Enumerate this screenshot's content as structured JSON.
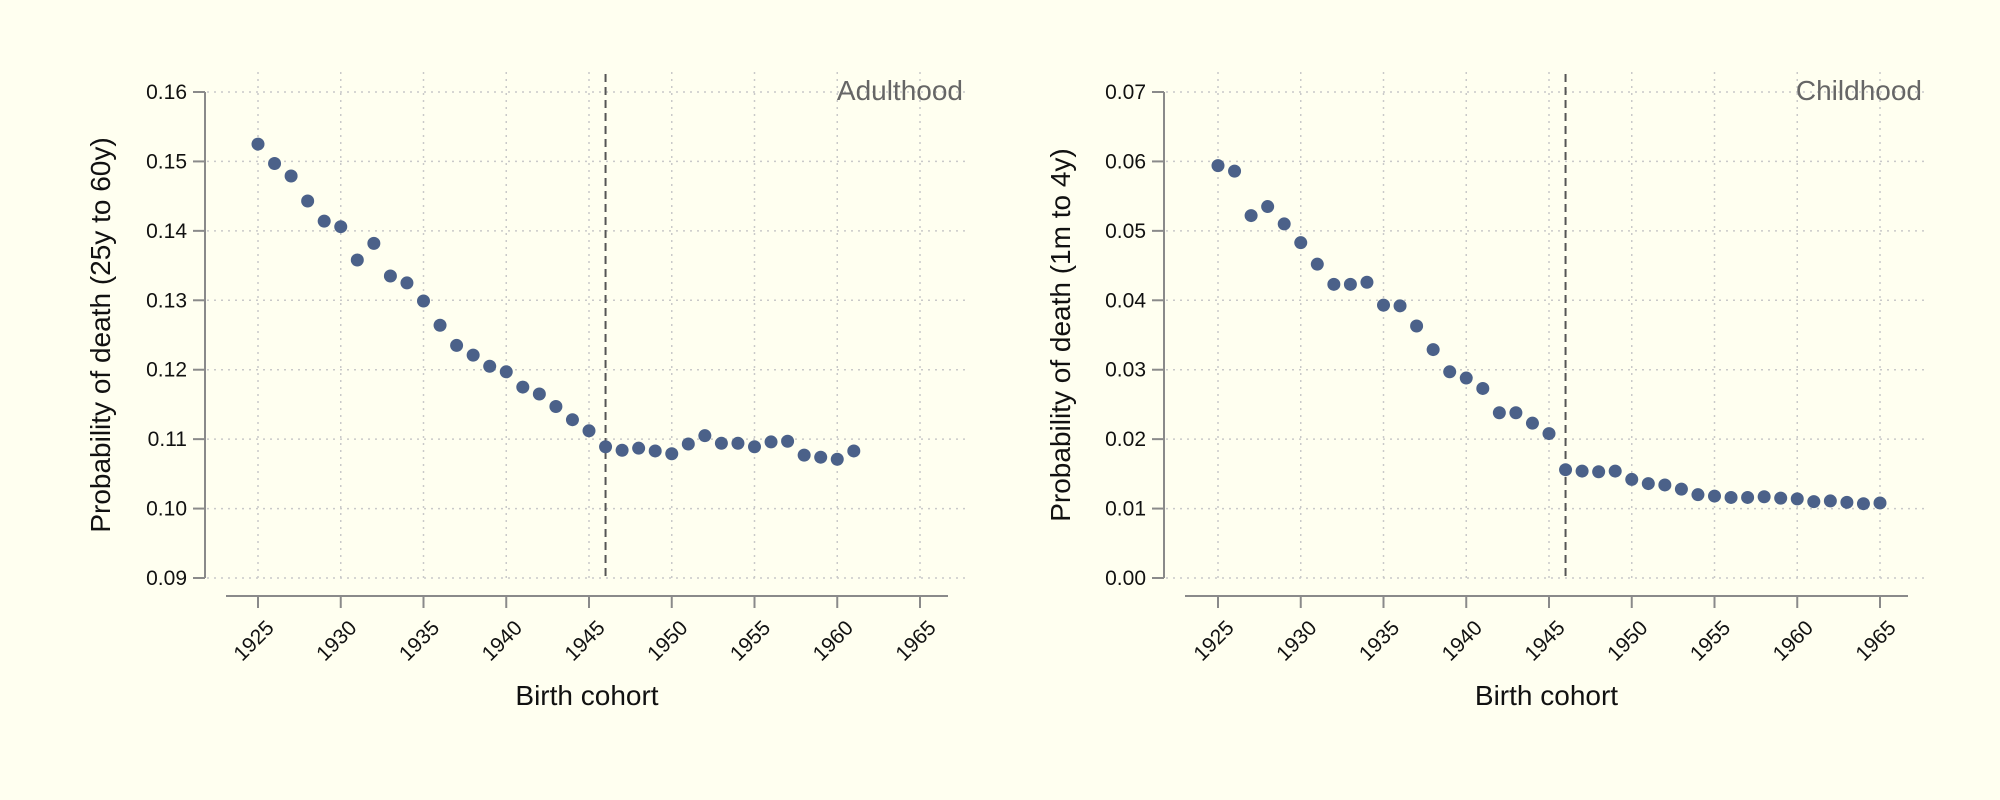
{
  "chart_data": [
    {
      "type": "scatter",
      "panel_label": "Adulthood",
      "xlabel": "Birth cohort",
      "ylabel": "Probability of death (25y to 60y)",
      "xlim": [
        1922,
        1967
      ],
      "ylim": [
        0.09,
        0.16
      ],
      "xticks": [
        "1925",
        "1930",
        "1935",
        "1940",
        "1945",
        "1950",
        "1955",
        "1960",
        "1965"
      ],
      "yticks": [
        "0.09",
        "0.10",
        "0.11",
        "0.12",
        "0.13",
        "0.14",
        "0.15",
        "0.16"
      ],
      "grid": true,
      "vline": 1946,
      "x": [
        1925,
        1926,
        1927,
        1928,
        1929,
        1930,
        1931,
        1932,
        1933,
        1934,
        1935,
        1936,
        1937,
        1938,
        1939,
        1940,
        1941,
        1942,
        1943,
        1944,
        1945,
        1946,
        1947,
        1948,
        1949,
        1950,
        1951,
        1952,
        1953,
        1954,
        1955,
        1956,
        1957,
        1958,
        1959,
        1960,
        1961
      ],
      "y": [
        0.1525,
        0.1497,
        0.1479,
        0.1443,
        0.1414,
        0.1406,
        0.1358,
        0.1382,
        0.1335,
        0.1325,
        0.1299,
        0.1264,
        0.1235,
        0.1221,
        0.1205,
        0.1197,
        0.1175,
        0.1165,
        0.1147,
        0.1128,
        0.1112,
        0.1089,
        0.1084,
        0.1087,
        0.1083,
        0.1079,
        0.1093,
        0.1105,
        0.1094,
        0.1094,
        0.1089,
        0.1096,
        0.1097,
        0.1077,
        0.1074,
        0.1071,
        0.1083
      ]
    },
    {
      "type": "scatter",
      "panel_label": "Childhood",
      "xlabel": "Birth cohort",
      "ylabel": "Probability of death (1m to 4y)",
      "xlim": [
        1922,
        1967
      ],
      "ylim": [
        0.0,
        0.07
      ],
      "xticks": [
        "1925",
        "1930",
        "1935",
        "1940",
        "1945",
        "1950",
        "1955",
        "1960",
        "1965"
      ],
      "yticks": [
        "0.00",
        "0.01",
        "0.02",
        "0.03",
        "0.04",
        "0.05",
        "0.06",
        "0.07"
      ],
      "grid": true,
      "vline": 1946,
      "x": [
        1925,
        1926,
        1927,
        1928,
        1929,
        1930,
        1931,
        1932,
        1933,
        1934,
        1935,
        1936,
        1937,
        1938,
        1939,
        1940,
        1941,
        1942,
        1943,
        1944,
        1945,
        1946,
        1947,
        1948,
        1949,
        1950,
        1951,
        1952,
        1953,
        1954,
        1955,
        1956,
        1957,
        1958,
        1959,
        1960,
        1961,
        1962,
        1963,
        1964,
        1965
      ],
      "y": [
        0.0594,
        0.0586,
        0.0522,
        0.0535,
        0.051,
        0.0483,
        0.0452,
        0.0423,
        0.0423,
        0.0426,
        0.0393,
        0.0392,
        0.0363,
        0.0329,
        0.0297,
        0.0288,
        0.0273,
        0.0238,
        0.0238,
        0.0223,
        0.0208,
        0.0156,
        0.0154,
        0.0153,
        0.0154,
        0.0142,
        0.0136,
        0.0134,
        0.0128,
        0.012,
        0.0118,
        0.0116,
        0.0116,
        0.0117,
        0.0115,
        0.0114,
        0.011,
        0.0111,
        0.0109,
        0.0107,
        0.0108
      ]
    }
  ],
  "colors": {
    "background": "#fffff0",
    "marker": "#4b6189",
    "axis": "#8a8a8a",
    "grid": "#c9c9c9",
    "vline": "#555555"
  }
}
